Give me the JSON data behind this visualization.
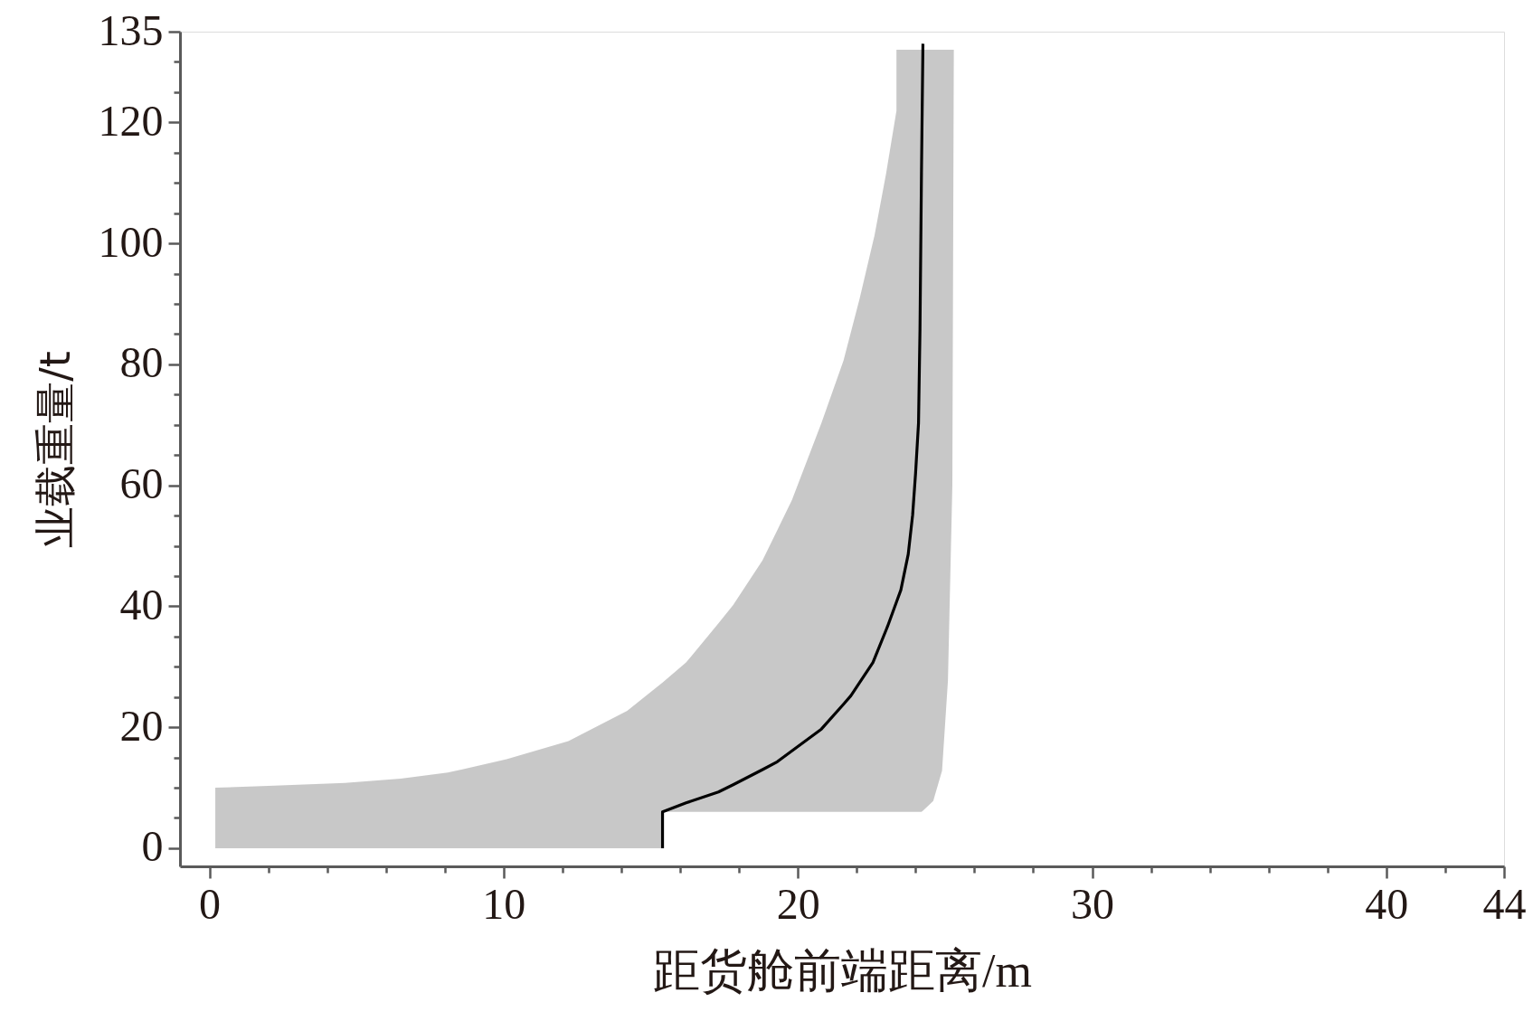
{
  "chart_data": {
    "type": "line",
    "xlabel": "距货舱前端距离/m",
    "ylabel": "业载重量/t",
    "xlim": [
      -1,
      44
    ],
    "xticks": [
      0,
      {
        "value": 2,
        "label": null
      },
      {
        "value": 4,
        "label": null
      },
      {
        "value": 6,
        "label": null
      },
      {
        "value": 8,
        "label": null
      },
      10,
      {
        "value": 12,
        "label": null
      },
      {
        "value": 14,
        "label": null
      },
      {
        "value": 16,
        "label": null
      },
      {
        "value": 18,
        "label": null
      },
      20,
      {
        "value": 22,
        "label": null
      },
      {
        "value": 24,
        "label": null
      },
      {
        "value": 26,
        "label": null
      },
      {
        "value": 28,
        "label": null
      },
      30,
      {
        "value": 32,
        "label": null
      },
      {
        "value": 34,
        "label": null
      },
      {
        "value": 36,
        "label": null
      },
      {
        "value": 38,
        "label": null
      },
      40,
      {
        "value": 42,
        "label": null
      },
      44
    ],
    "ylim": [
      -3,
      135
    ],
    "yticks": [
      0,
      {
        "value": 5,
        "label": null
      },
      {
        "value": 10,
        "label": null
      },
      {
        "value": 15,
        "label": null
      },
      20,
      {
        "value": 25,
        "label": null
      },
      {
        "value": 30,
        "label": null
      },
      {
        "value": 35,
        "label": null
      },
      40,
      {
        "value": 45,
        "label": null
      },
      {
        "value": 50,
        "label": null
      },
      {
        "value": 55,
        "label": null
      },
      60,
      {
        "value": 65,
        "label": null
      },
      {
        "value": 70,
        "label": null
      },
      {
        "value": 75,
        "label": null
      },
      80,
      {
        "value": 85,
        "label": null
      },
      {
        "value": 90,
        "label": null
      },
      {
        "value": 95,
        "label": null
      },
      100,
      {
        "value": 105,
        "label": null
      },
      {
        "value": 110,
        "label": null
      },
      {
        "value": 115,
        "label": null
      },
      120,
      {
        "value": 125,
        "label": null
      },
      {
        "value": 130,
        "label": null
      },
      135
    ],
    "series": [
      {
        "color": "#000000",
        "x": [
          0.2,
          2,
          4.6,
          6.5,
          8.1,
          10.1,
          12.2,
          14.2,
          15.4,
          15.4,
          16.2,
          17.3,
          17.8,
          18.8,
          19.3,
          19.8,
          20.8,
          21.55,
          21.8,
          22.1,
          22.55,
          22.6,
          23.0,
          23.05,
          23.35,
          23.35,
          23.5,
          23.75,
          23.9,
          24.0,
          24.1,
          24.15,
          24.2,
          24.25,
          24.6,
          24.9,
          25.1,
          25.25,
          25.3
        ],
        "values": [
          null,
          null,
          null,
          null,
          null,
          null,
          null,
          null,
          0,
          6,
          7.5,
          9.3,
          10.5,
          13.0,
          14.3,
          16.1,
          19.7,
          23.8,
          25.2,
          27.4,
          30.7,
          31.3,
          36.1,
          36.7,
          40.7,
          40.7,
          42.7,
          48.6,
          55.1,
          62,
          70.3,
          85.8,
          111.6,
          133,
          null,
          null,
          null,
          null,
          null
        ],
        "lower": [
          0,
          0,
          0,
          0,
          0,
          0,
          0,
          0,
          0,
          6,
          6,
          6,
          6,
          6,
          6,
          6,
          6,
          6,
          6,
          6,
          6,
          6,
          6,
          6,
          6,
          6,
          6,
          6,
          6,
          6,
          6,
          6,
          6,
          6.2,
          7.8,
          12.8,
          27.7,
          60,
          132
        ],
        "upper": [
          10,
          10.3,
          10.8,
          11.5,
          12.5,
          14.7,
          17.7,
          22.7,
          27.4,
          27.4,
          30.7,
          37.2,
          40.2,
          47.6,
          52.6,
          57.6,
          70.3,
          80.6,
          85.3,
          90.9,
          100.2,
          101.2,
          111.6,
          113.1,
          121.9,
          132,
          132,
          132,
          132,
          132,
          132,
          132,
          132,
          132,
          132,
          132,
          132,
          132,
          132
        ]
      }
    ]
  }
}
